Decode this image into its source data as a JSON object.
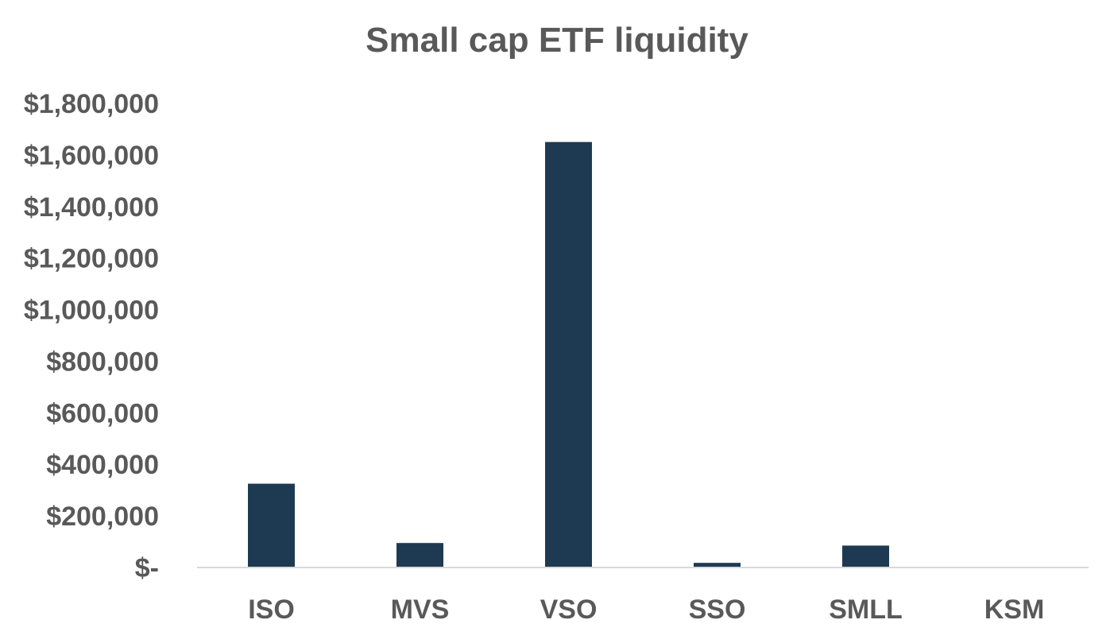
{
  "colors": {
    "bar": "#1e3a52",
    "text": "#595959",
    "axis": "#d9d9d9",
    "background": "#ffffff"
  },
  "chart_data": {
    "type": "bar",
    "title": "Small cap ETF liquidity",
    "xlabel": "",
    "ylabel": "",
    "categories": [
      "ISO",
      "MVS",
      "VSO",
      "SSO",
      "SMLL",
      "KSM"
    ],
    "values": [
      325000,
      95000,
      1650000,
      18000,
      85000,
      2000
    ],
    "ylim": [
      0,
      1800000
    ],
    "y_ticks": [
      0,
      200000,
      400000,
      600000,
      800000,
      1000000,
      1200000,
      1400000,
      1600000,
      1800000
    ],
    "y_tick_labels": [
      "$-",
      "$200,000",
      "$400,000",
      "$600,000",
      "$800,000",
      "$1,000,000",
      "$1,200,000",
      "$1,400,000",
      "$1,600,000",
      "$1,800,000"
    ],
    "grid": false,
    "legend": "none"
  }
}
